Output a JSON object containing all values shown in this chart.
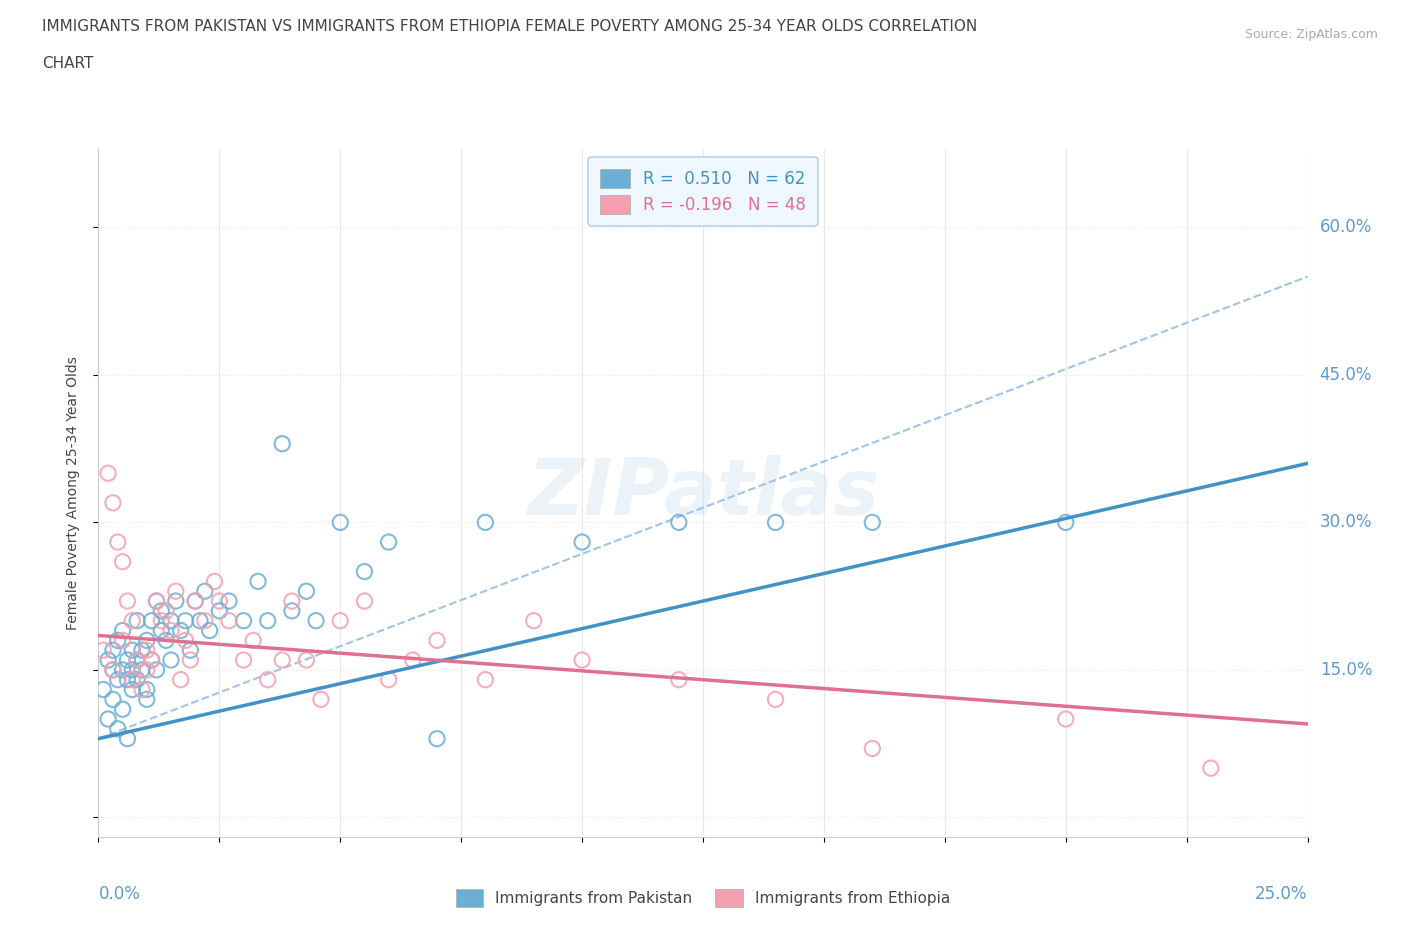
{
  "title_line1": "IMMIGRANTS FROM PAKISTAN VS IMMIGRANTS FROM ETHIOPIA FEMALE POVERTY AMONG 25-34 YEAR OLDS CORRELATION",
  "title_line2": "CHART",
  "source": "Source: ZipAtlas.com",
  "ylabel": "Female Poverty Among 25-34 Year Olds",
  "xlim": [
    0.0,
    0.25
  ],
  "ylim": [
    -0.02,
    0.68
  ],
  "pakistan_color": "#6baed6",
  "pakistan_color_dark": "#4292c6",
  "ethiopia_color": "#f4a0b0",
  "ethiopia_color_dark": "#e07090",
  "pakistan_R": 0.51,
  "pakistan_N": 62,
  "ethiopia_R": -0.196,
  "ethiopia_N": 48,
  "watermark": "ZIPatlas",
  "pakistan_scatter_x": [
    0.001,
    0.002,
    0.002,
    0.003,
    0.003,
    0.003,
    0.004,
    0.004,
    0.004,
    0.005,
    0.005,
    0.005,
    0.006,
    0.006,
    0.006,
    0.007,
    0.007,
    0.007,
    0.008,
    0.008,
    0.008,
    0.009,
    0.009,
    0.01,
    0.01,
    0.01,
    0.011,
    0.011,
    0.012,
    0.012,
    0.013,
    0.013,
    0.014,
    0.015,
    0.015,
    0.016,
    0.017,
    0.018,
    0.019,
    0.02,
    0.021,
    0.022,
    0.023,
    0.025,
    0.027,
    0.03,
    0.033,
    0.035,
    0.038,
    0.04,
    0.043,
    0.045,
    0.05,
    0.055,
    0.06,
    0.07,
    0.08,
    0.1,
    0.12,
    0.14,
    0.16,
    0.2
  ],
  "pakistan_scatter_y": [
    0.13,
    0.16,
    0.1,
    0.15,
    0.17,
    0.12,
    0.14,
    0.18,
    0.09,
    0.15,
    0.11,
    0.19,
    0.14,
    0.16,
    0.08,
    0.15,
    0.17,
    0.13,
    0.16,
    0.14,
    0.2,
    0.15,
    0.17,
    0.13,
    0.18,
    0.12,
    0.2,
    0.16,
    0.22,
    0.15,
    0.19,
    0.21,
    0.18,
    0.2,
    0.16,
    0.22,
    0.19,
    0.2,
    0.17,
    0.22,
    0.2,
    0.23,
    0.19,
    0.21,
    0.22,
    0.2,
    0.24,
    0.2,
    0.38,
    0.21,
    0.23,
    0.2,
    0.3,
    0.25,
    0.28,
    0.08,
    0.3,
    0.28,
    0.3,
    0.3,
    0.3,
    0.3
  ],
  "ethiopia_scatter_x": [
    0.001,
    0.002,
    0.003,
    0.003,
    0.004,
    0.005,
    0.005,
    0.006,
    0.007,
    0.007,
    0.008,
    0.009,
    0.01,
    0.01,
    0.011,
    0.012,
    0.013,
    0.014,
    0.015,
    0.016,
    0.017,
    0.018,
    0.019,
    0.02,
    0.022,
    0.024,
    0.025,
    0.027,
    0.03,
    0.032,
    0.035,
    0.038,
    0.04,
    0.043,
    0.046,
    0.05,
    0.055,
    0.06,
    0.065,
    0.07,
    0.08,
    0.09,
    0.1,
    0.12,
    0.14,
    0.16,
    0.2,
    0.23
  ],
  "ethiopia_scatter_y": [
    0.17,
    0.35,
    0.15,
    0.32,
    0.28,
    0.26,
    0.18,
    0.22,
    0.14,
    0.2,
    0.16,
    0.13,
    0.15,
    0.17,
    0.16,
    0.22,
    0.2,
    0.21,
    0.19,
    0.23,
    0.14,
    0.18,
    0.16,
    0.22,
    0.2,
    0.24,
    0.22,
    0.2,
    0.16,
    0.18,
    0.14,
    0.16,
    0.22,
    0.16,
    0.12,
    0.2,
    0.22,
    0.14,
    0.16,
    0.18,
    0.14,
    0.2,
    0.16,
    0.14,
    0.12,
    0.07,
    0.1,
    0.05
  ],
  "pakistan_line_x": [
    0.0,
    0.25
  ],
  "pakistan_line_y": [
    0.08,
    0.36
  ],
  "ethiopia_line_x": [
    0.0,
    0.25
  ],
  "ethiopia_line_y": [
    0.185,
    0.095
  ],
  "dashed_line_x": [
    0.0,
    0.25
  ],
  "dashed_line_y": [
    0.08,
    0.55
  ],
  "background_color": "#ffffff",
  "grid_color": "#e8e8e8",
  "axis_color": "#cccccc",
  "text_color": "#444444",
  "title_color": "#444444",
  "ytick_labels": [
    "15.0%",
    "30.0%",
    "45.0%",
    "60.0%"
  ],
  "ytick_values": [
    0.15,
    0.3,
    0.45,
    0.6
  ],
  "legend_face": "#f0f8ff",
  "legend_edge": "#b8d4e8"
}
